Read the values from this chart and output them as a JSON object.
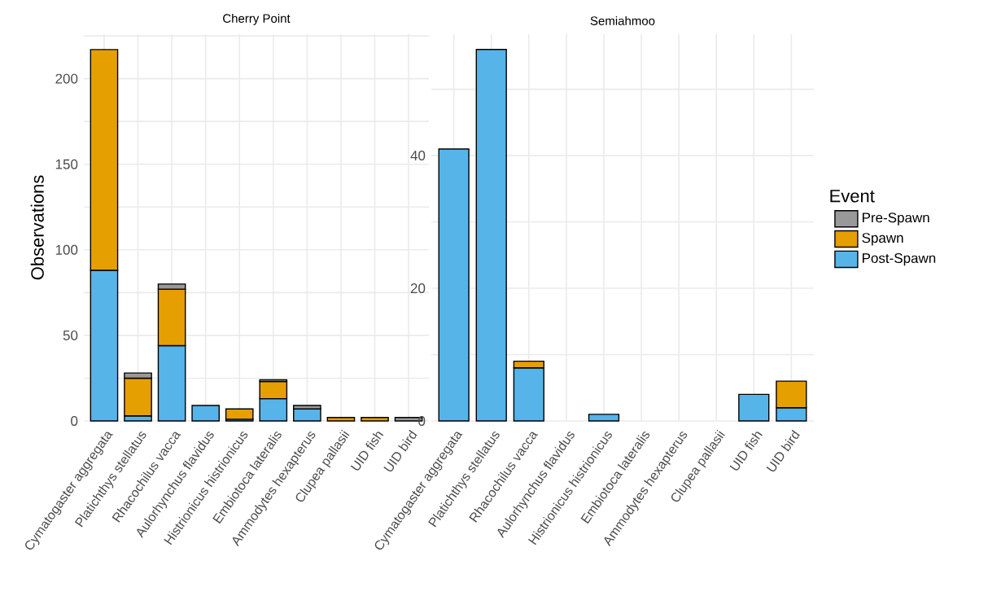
{
  "chart_data": [
    {
      "type": "bar",
      "stacked": true,
      "title": "Cherry Point",
      "ylabel": "Observations",
      "categories": [
        "Cymatogaster aggregata",
        "Platichthys stellatus",
        "Rhacochilus vacca",
        "Aulorhynchus flavidus",
        "Histrionicus histrionicus",
        "Embiotoca lateralis",
        "Ammodytes hexapterus",
        "Clupea pallasii",
        "UID fish",
        "UID bird"
      ],
      "series": [
        {
          "color": "#56b4e9",
          "values": [
            88,
            3,
            44,
            9,
            1,
            13,
            7,
            null,
            null,
            null
          ]
        },
        {
          "color": "#e69f00",
          "values": [
            129,
            22,
            33,
            null,
            6,
            10,
            null,
            2,
            2,
            null
          ]
        },
        {
          "color": "#999999",
          "values": [
            null,
            3,
            3,
            null,
            null,
            1,
            2,
            null,
            null,
            2
          ]
        }
      ],
      "ylim": [
        0,
        226
      ],
      "yticks": [
        0,
        {
          "value": 25,
          "label": null
        },
        50,
        {
          "value": 75,
          "label": null
        },
        100,
        {
          "value": 125,
          "label": null
        },
        150,
        {
          "value": 175,
          "label": null
        },
        200,
        {
          "value": 225,
          "label": null
        }
      ],
      "grid": true,
      "legend": false
    },
    {
      "type": "bar",
      "stacked": true,
      "title": "Semiahmoo",
      "legend_title": "Event",
      "categories": [
        "Cymatogaster aggregata",
        "Platichthys stellatus",
        "Rhacochilus vacca",
        "Aulorhynchus flavidus",
        "Histrionicus histrionicus",
        "Embiotoca lateralis",
        "Ammodytes hexapterus",
        "Clupea pallasii",
        "UID fish",
        "UID bird"
      ],
      "series": [
        {
          "name": "Post-Spawn",
          "color": "#56b4e9",
          "values": [
            41,
            56,
            8,
            null,
            1,
            null,
            null,
            null,
            4,
            2
          ]
        },
        {
          "name": "Spawn",
          "color": "#e69f00",
          "values": [
            null,
            null,
            1,
            null,
            null,
            null,
            null,
            null,
            null,
            4
          ]
        },
        {
          "name": "Pre-Spawn",
          "color": "#999999",
          "values": [
            null,
            null,
            null,
            null,
            null,
            null,
            null,
            null,
            null,
            null
          ]
        }
      ],
      "ylim": [
        0,
        58.3
      ],
      "yticks": [
        0,
        {
          "value": 10,
          "label": null
        },
        20,
        {
          "value": 30,
          "label": null
        },
        40,
        {
          "value": 50,
          "label": null
        }
      ],
      "grid": true,
      "legend": "right"
    }
  ]
}
